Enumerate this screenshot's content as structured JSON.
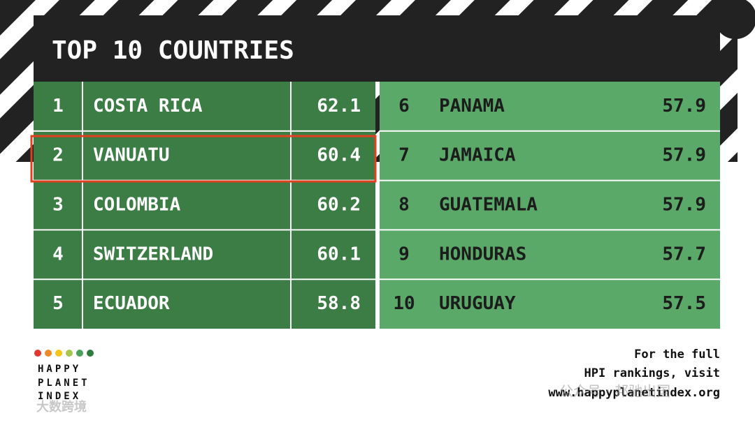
{
  "header": {
    "title": "TOP 10 COUNTRIES"
  },
  "table": {
    "rows": [
      [
        1,
        "COSTA RICA",
        62.1
      ],
      [
        2,
        "VANUATU",
        60.4
      ],
      [
        3,
        "COLOMBIA",
        60.2
      ],
      [
        4,
        "SWITZERLAND",
        60.1
      ],
      [
        5,
        "ECUADOR",
        58.8
      ],
      [
        6,
        "PANAMA",
        57.9
      ],
      [
        7,
        "JAMAICA",
        57.9
      ],
      [
        8,
        "GUATEMALA",
        57.9
      ],
      [
        9,
        "HONDURAS",
        57.7
      ],
      [
        10,
        "URUGUAY",
        57.5
      ]
    ]
  },
  "logo": {
    "lines": [
      "HAPPY",
      "PLANET",
      "INDEX"
    ]
  },
  "footer": {
    "lines": [
      "For the full",
      "HPI rankings, visit",
      "www.happyplanetindex.org"
    ]
  },
  "watermarks": [
    "公众号 · 邦驰出国",
    "大数跨境"
  ]
}
